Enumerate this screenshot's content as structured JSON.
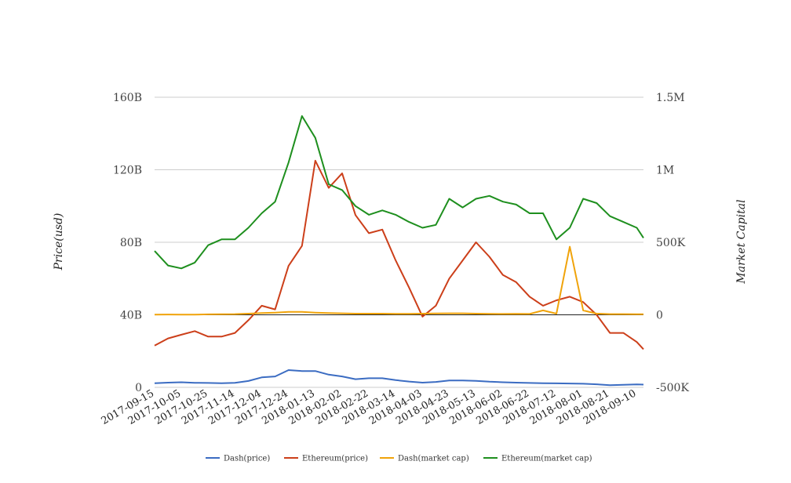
{
  "chart_data": {
    "type": "line",
    "title": "",
    "xlabel": "",
    "ylabel_left": "Price(usd)",
    "ylabel_right": "Market Capital",
    "left_axis": {
      "min": 0,
      "max": 160000000000,
      "ticks": [
        0,
        40000000000,
        80000000000,
        120000000000,
        160000000000
      ],
      "tick_labels": [
        "0",
        "40B",
        "80B",
        "120B",
        "160B"
      ]
    },
    "right_axis": {
      "min": -500000,
      "max": 1500000,
      "ticks": [
        -500000,
        0,
        500000,
        1000000,
        1500000
      ],
      "tick_labels": [
        "-500K",
        "0",
        "500K",
        "1M",
        "1.5M"
      ]
    },
    "x_tick_labels": [
      "2017-09-15",
      "2017-10-05",
      "2017-10-25",
      "2017-11-14",
      "2017-12-04",
      "2017-12-24",
      "2018-01-13",
      "2018-02-02",
      "2018-02-22",
      "2018-03-14",
      "2018-04-03",
      "2018-04-23",
      "2018-05-13",
      "2018-06-02",
      "2018-06-22",
      "2018-07-12",
      "2018-08-01",
      "2018-08-21",
      "2018-09-10"
    ],
    "grid": true,
    "legend_position": "bottom",
    "x": [
      "2017-09-15",
      "2017-09-25",
      "2017-10-05",
      "2017-10-15",
      "2017-10-25",
      "2017-11-04",
      "2017-11-14",
      "2017-11-24",
      "2017-12-04",
      "2017-12-14",
      "2017-12-24",
      "2018-01-03",
      "2018-01-13",
      "2018-01-23",
      "2018-02-02",
      "2018-02-12",
      "2018-02-22",
      "2018-03-04",
      "2018-03-14",
      "2018-03-24",
      "2018-04-03",
      "2018-04-13",
      "2018-04-23",
      "2018-05-03",
      "2018-05-13",
      "2018-05-23",
      "2018-06-02",
      "2018-06-12",
      "2018-06-22",
      "2018-07-02",
      "2018-07-12",
      "2018-07-22",
      "2018-08-01",
      "2018-08-11",
      "2018-08-21",
      "2018-08-31",
      "2018-09-10",
      "2018-09-15"
    ],
    "series": [
      {
        "name": "Dash(price)",
        "axis": "left",
        "color": "#3b6cc2",
        "values": [
          2300000000,
          2600000000,
          2800000000,
          2500000000,
          2400000000,
          2300000000,
          2500000000,
          3500000000,
          5500000000,
          6000000000,
          9500000000,
          9000000000,
          9000000000,
          7000000000,
          6000000000,
          4500000000,
          5000000000,
          5000000000,
          4000000000,
          3200000000,
          2600000000,
          3000000000,
          3800000000,
          3800000000,
          3600000000,
          3100000000,
          2800000000,
          2600000000,
          2400000000,
          2300000000,
          2200000000,
          2100000000,
          2000000000,
          1700000000,
          1200000000,
          1400000000,
          1600000000,
          1500000000
        ]
      },
      {
        "name": "Ethereum(price)",
        "axis": "left",
        "color": "#cc3f1a",
        "values": [
          23000000000,
          27000000000,
          29000000000,
          31000000000,
          28000000000,
          28000000000,
          30000000000,
          37000000000,
          45000000000,
          43000000000,
          67000000000,
          78000000000,
          125000000000,
          110000000000,
          118000000000,
          95000000000,
          85000000000,
          87000000000,
          70000000000,
          55000000000,
          39000000000,
          45000000000,
          60000000000,
          70000000000,
          80000000000,
          72000000000,
          62000000000,
          58000000000,
          50000000000,
          45000000000,
          48000000000,
          50000000000,
          47000000000,
          40000000000,
          30000000000,
          30000000000,
          25000000000,
          21000000000
        ]
      },
      {
        "name": "Dash(market cap)",
        "axis": "right",
        "color": "#f0a30a",
        "values": [
          1000,
          2000,
          1500,
          1500,
          3000,
          4000,
          5000,
          8000,
          12000,
          15000,
          20000,
          20000,
          15000,
          12000,
          10000,
          8000,
          8000,
          8000,
          7000,
          7000,
          8000,
          9000,
          10000,
          10000,
          8000,
          7000,
          6000,
          7000,
          6000,
          30000,
          8000,
          470000,
          30000,
          8000,
          5000,
          5000,
          4000,
          4000
        ]
      },
      {
        "name": "Ethereum(market cap)",
        "axis": "right",
        "color": "#1e8f1e",
        "values": [
          440000,
          340000,
          320000,
          360000,
          480000,
          520000,
          520000,
          600000,
          700000,
          780000,
          1050000,
          1370000,
          1220000,
          900000,
          860000,
          750000,
          690000,
          720000,
          690000,
          640000,
          600000,
          620000,
          800000,
          740000,
          800000,
          820000,
          780000,
          760000,
          700000,
          700000,
          520000,
          600000,
          800000,
          770000,
          680000,
          640000,
          600000,
          530000
        ]
      }
    ]
  }
}
